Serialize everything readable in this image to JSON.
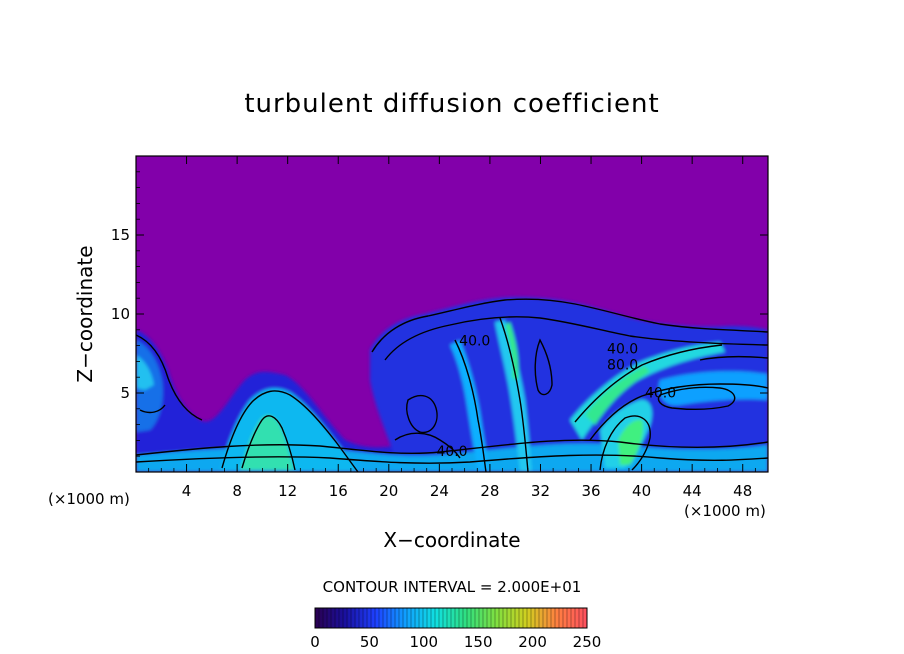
{
  "chart_data": {
    "type": "heatmap",
    "title": "turbulent diffusion coefficient",
    "xlabel": "X−coordinate",
    "ylabel": "Z−coordinate",
    "x_unit_left": "(×1000 m)",
    "x_unit_right": "(×1000 m)",
    "xlim": [
      0,
      50
    ],
    "ylim": [
      0,
      20
    ],
    "x_ticks": [
      4,
      8,
      12,
      16,
      20,
      24,
      28,
      32,
      36,
      40,
      44,
      48
    ],
    "y_ticks": [
      5,
      10,
      15
    ],
    "contour_interval_text": "CONTOUR INTERVAL = 2.000E+01",
    "contour_labels": [
      {
        "text": "40.0",
        "x": 25.0,
        "y": 1.0
      },
      {
        "text": "40.0",
        "x": 26.8,
        "y": 8.0
      },
      {
        "text": "40.0",
        "x": 38.5,
        "y": 7.5
      },
      {
        "text": "80.0",
        "x": 38.5,
        "y": 6.5
      },
      {
        "text": "40.0",
        "x": 41.5,
        "y": 4.7
      }
    ],
    "colorbar": {
      "ticks": [
        0,
        50,
        100,
        150,
        200,
        250
      ],
      "range": [
        0,
        250
      ],
      "stops": [
        "#2a0050",
        "#1a10a0",
        "#1e40ff",
        "#10a0ff",
        "#10e0e0",
        "#30e080",
        "#80e040",
        "#d0d020",
        "#ff8040",
        "#ff5060"
      ]
    },
    "background_color": "#8200aa"
  }
}
